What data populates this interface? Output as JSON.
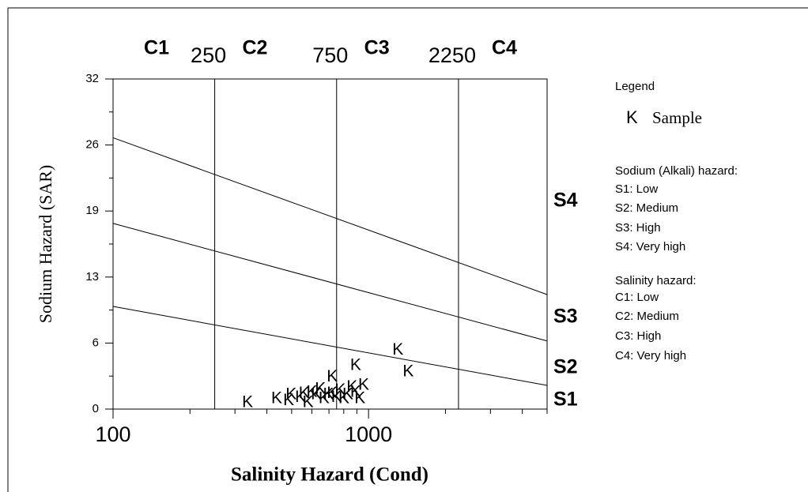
{
  "chart_data": {
    "type": "scatter",
    "xlabel": "Salinity Hazard (Cond)",
    "ylabel": "Sodium Hazard (SAR)",
    "xscale": "log",
    "xlim": [
      100,
      5000
    ],
    "xticks": [
      100,
      1000
    ],
    "xminor": [
      200,
      300,
      400,
      500,
      600,
      700,
      800,
      900,
      2000,
      3000,
      4000,
      5000
    ],
    "ylim": [
      0,
      32
    ],
    "yticks": [
      0,
      {
        "value": 6.4,
        "label": "6"
      },
      {
        "value": 12.8,
        "label": "13"
      },
      {
        "value": 19.2,
        "label": "19"
      },
      {
        "value": 25.6,
        "label": "26"
      },
      32
    ],
    "yminor": [
      3.2,
      9.6,
      16,
      22.4,
      28.8
    ],
    "salinity_classes": [
      "C1",
      "C2",
      "C3",
      "C4"
    ],
    "salinity_bounds": [
      250,
      750,
      2250
    ],
    "sodium_classes": [
      "S1",
      "S2",
      "S3",
      "S4"
    ],
    "sodium_bounds": [
      {
        "x": [
          100,
          5000
        ],
        "y": [
          9.95,
          2.3
        ]
      },
      {
        "x": [
          100,
          5000
        ],
        "y": [
          18.0,
          6.6
        ]
      },
      {
        "x": [
          100,
          5000
        ],
        "y": [
          26.3,
          11.1
        ]
      }
    ],
    "legend_title": "Legend",
    "legend_notes": [
      "Sodium (Alkali) hazard:",
      "S1: Low",
      "S2: Medium",
      "S3: High",
      "S4: Very high",
      "Salinity hazard:",
      "C1: Low",
      "C2: Medium",
      "C3: High",
      "C4: Very high"
    ],
    "series": [
      {
        "name": "Sample",
        "marker": "K",
        "color": "#808080",
        "x": [
          336,
          437,
          487,
          498,
          542,
          560,
          580,
          600,
          625,
          648,
          670,
          697,
          721,
          721,
          750,
          775,
          801,
          830,
          862,
          891,
          891,
          925,
          957,
          1303,
          1430
        ],
        "y": [
          0.6,
          1.0,
          0.8,
          1.4,
          1.1,
          1.5,
          0.6,
          1.6,
          1.4,
          1.9,
          1.0,
          1.4,
          1.5,
          3.1,
          1.1,
          1.8,
          1.0,
          1.4,
          2.1,
          1.6,
          4.2,
          1.0,
          2.3,
          5.7,
          3.6
        ]
      }
    ]
  }
}
